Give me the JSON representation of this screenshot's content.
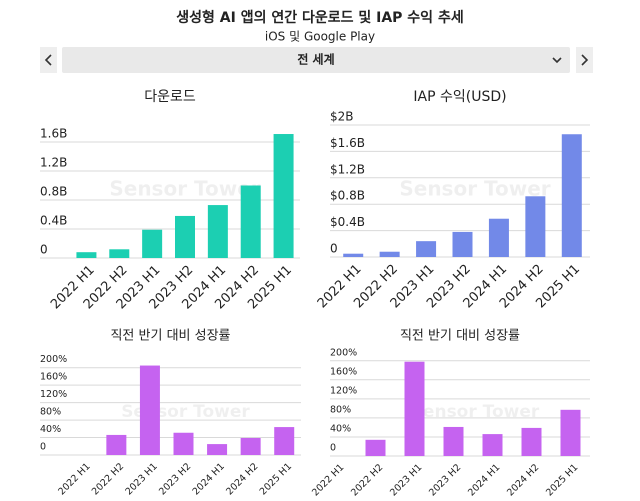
{
  "header": {
    "title": "생성형 AI 앱의 연간 다운로드 및 IAP 수익 추세",
    "subtitle": "iOS 및 Google Play",
    "region": "전 세계"
  },
  "watermark": "Sensor Tower",
  "chart_data": [
    {
      "type": "bar",
      "title": "다운로드",
      "color": "#1ccfb2",
      "categories": [
        "2022 H1",
        "2022 H2",
        "2023 H1",
        "2023 H2",
        "2024 H1",
        "2024 H2",
        "2025 H1"
      ],
      "values": [
        80000000,
        120000000,
        390000000,
        580000000,
        730000000,
        1000000000,
        1710000000
      ],
      "ylim": [
        0,
        1800000000
      ],
      "yticks": [
        0,
        {
          "value": 400000000,
          "label": "0.4B"
        },
        {
          "value": 800000000,
          "label": "0.8B"
        },
        {
          "value": 1200000000,
          "label": "1.2B"
        },
        {
          "value": 1600000000,
          "label": "1.6B"
        }
      ]
    },
    {
      "type": "bar",
      "title": "IAP 수익(USD)",
      "color": "#7289e8",
      "categories": [
        "2022 H1",
        "2022 H2",
        "2023 H1",
        "2023 H2",
        "2024 H1",
        "2024 H2",
        "2025 H1"
      ],
      "values": [
        50000000,
        80000000,
        240000000,
        380000000,
        580000000,
        920000000,
        1860000000
      ],
      "ylim": [
        0,
        2000000000
      ],
      "yticks": [
        0,
        {
          "value": 400000000,
          "label": "$0.4B"
        },
        {
          "value": 800000000,
          "label": "$0.8B"
        },
        {
          "value": 1200000000,
          "label": "$1.2B"
        },
        {
          "value": 1600000000,
          "label": "$1.6B"
        },
        {
          "value": 2000000000,
          "label": "$2B"
        }
      ]
    },
    {
      "type": "bar",
      "title": "직전 반기 대비 성장률",
      "color": "#c563f0",
      "categories": [
        "2022 H1",
        "2022 H2",
        "2023 H1",
        "2023 H2",
        "2024 H1",
        "2024 H2",
        "2025 H1"
      ],
      "values": [
        null,
        46,
        205,
        51,
        25,
        39,
        64
      ],
      "ylim": [
        0,
        220
      ],
      "yticks": [
        0,
        {
          "value": 40,
          "label": "40%"
        },
        {
          "value": 80,
          "label": "80%"
        },
        {
          "value": 120,
          "label": "120%"
        },
        {
          "value": 160,
          "label": "160%"
        },
        {
          "value": 200,
          "label": "200%"
        }
      ]
    },
    {
      "type": "bar",
      "title": "직전 반기 대비 성장률",
      "color": "#c563f0",
      "categories": [
        "2022 H1",
        "2022 H2",
        "2023 H1",
        "2023 H2",
        "2024 H1",
        "2024 H2",
        "2025 H1"
      ],
      "values": [
        null,
        34,
        198,
        61,
        46,
        59,
        97
      ],
      "ylim": [
        0,
        210
      ],
      "yticks": [
        0,
        {
          "value": 40,
          "label": "40%"
        },
        {
          "value": 80,
          "label": "80%"
        },
        {
          "value": 120,
          "label": "120%"
        },
        {
          "value": 160,
          "label": "160%"
        },
        {
          "value": 200,
          "label": "200%"
        }
      ]
    }
  ]
}
